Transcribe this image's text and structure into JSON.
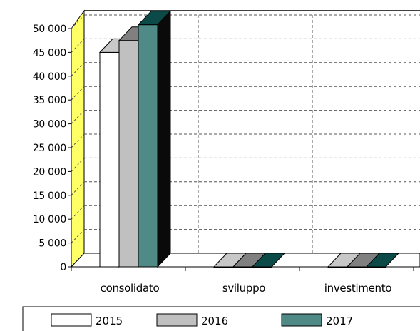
{
  "chart_data": {
    "type": "bar",
    "categories": [
      "consolidato",
      "sviluppo",
      "investimento"
    ],
    "series": [
      {
        "name": "2015",
        "values": [
          45000,
          0,
          0
        ],
        "color": "#ffffff",
        "side_color": "#c8c8c8",
        "top_color": "#c8c8c8"
      },
      {
        "name": "2016",
        "values": [
          47500,
          0,
          0
        ],
        "color": "#c0c0c0",
        "side_color": "#6e6e6e",
        "top_color": "#808080"
      },
      {
        "name": "2017",
        "values": [
          50800,
          0,
          0
        ],
        "color": "#4f8a87",
        "side_color": "#0a0a0a",
        "top_color": "#0c4a47"
      }
    ],
    "y_ticks": [
      "0",
      "5 000",
      "10 000",
      "15 000",
      "20 000",
      "25 000",
      "30 000",
      "35 000",
      "40 000",
      "45 000",
      "50 000"
    ],
    "ylim": [
      0,
      50000
    ],
    "title": "",
    "xlabel": "",
    "ylabel": "",
    "grid": true,
    "legend_position": "bottom",
    "wall_color": "#ffff66"
  }
}
